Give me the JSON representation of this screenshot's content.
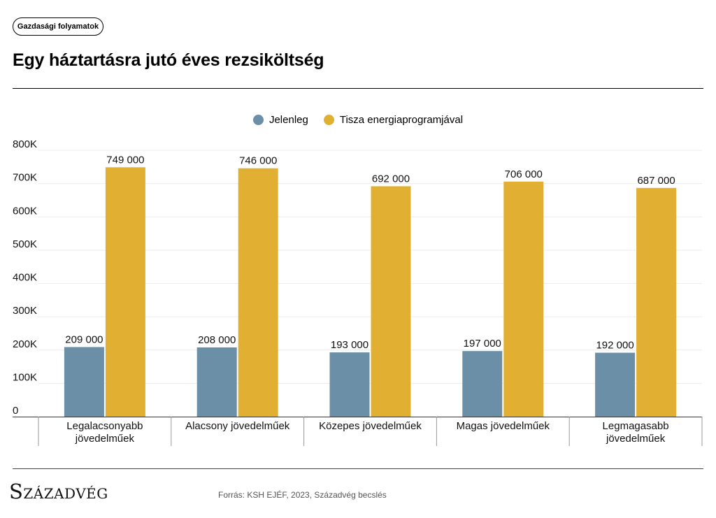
{
  "header": {
    "tag_label": "Gazdasági folyamatok",
    "title": "Egy háztartásra jutó éves rezsiköltség"
  },
  "footer": {
    "logo_text": "Századvég",
    "source": "Forrás: KSH EJÉF, 2023, Századvég becslés"
  },
  "colors": {
    "jelenleg": "#6b8fa6",
    "tisza": "#e1b033"
  },
  "chart_data": {
    "type": "bar",
    "title": "Egy háztartásra jutó éves rezsiköltség",
    "xlabel": "",
    "ylabel": "",
    "ylim": [
      0,
      800000
    ],
    "yticks": [
      0,
      100000,
      200000,
      300000,
      400000,
      500000,
      600000,
      700000,
      800000
    ],
    "ytick_labels": [
      "0",
      "100K",
      "200K",
      "300K",
      "400K",
      "500K",
      "600K",
      "700K",
      "800K"
    ],
    "grid": true,
    "legend_position": "top-center",
    "categories": [
      [
        "Legalacsonyabb",
        "jövedelműek"
      ],
      [
        "Alacsony jövedelműek"
      ],
      [
        "Közepes jövedelműek"
      ],
      [
        "Magas jövedelműek"
      ],
      [
        "Legmagasabb",
        "jövedelműek"
      ]
    ],
    "series": [
      {
        "name": "Jelenleg",
        "values": [
          209000,
          208000,
          193000,
          197000,
          192000
        ],
        "labels": [
          "209 000",
          "208 000",
          "193 000",
          "197 000",
          "192 000"
        ]
      },
      {
        "name": "Tisza energiaprogramjával",
        "values": [
          749000,
          746000,
          692000,
          706000,
          687000
        ],
        "labels": [
          "749 000",
          "746 000",
          "692 000",
          "706 000",
          "687 000"
        ]
      }
    ]
  }
}
